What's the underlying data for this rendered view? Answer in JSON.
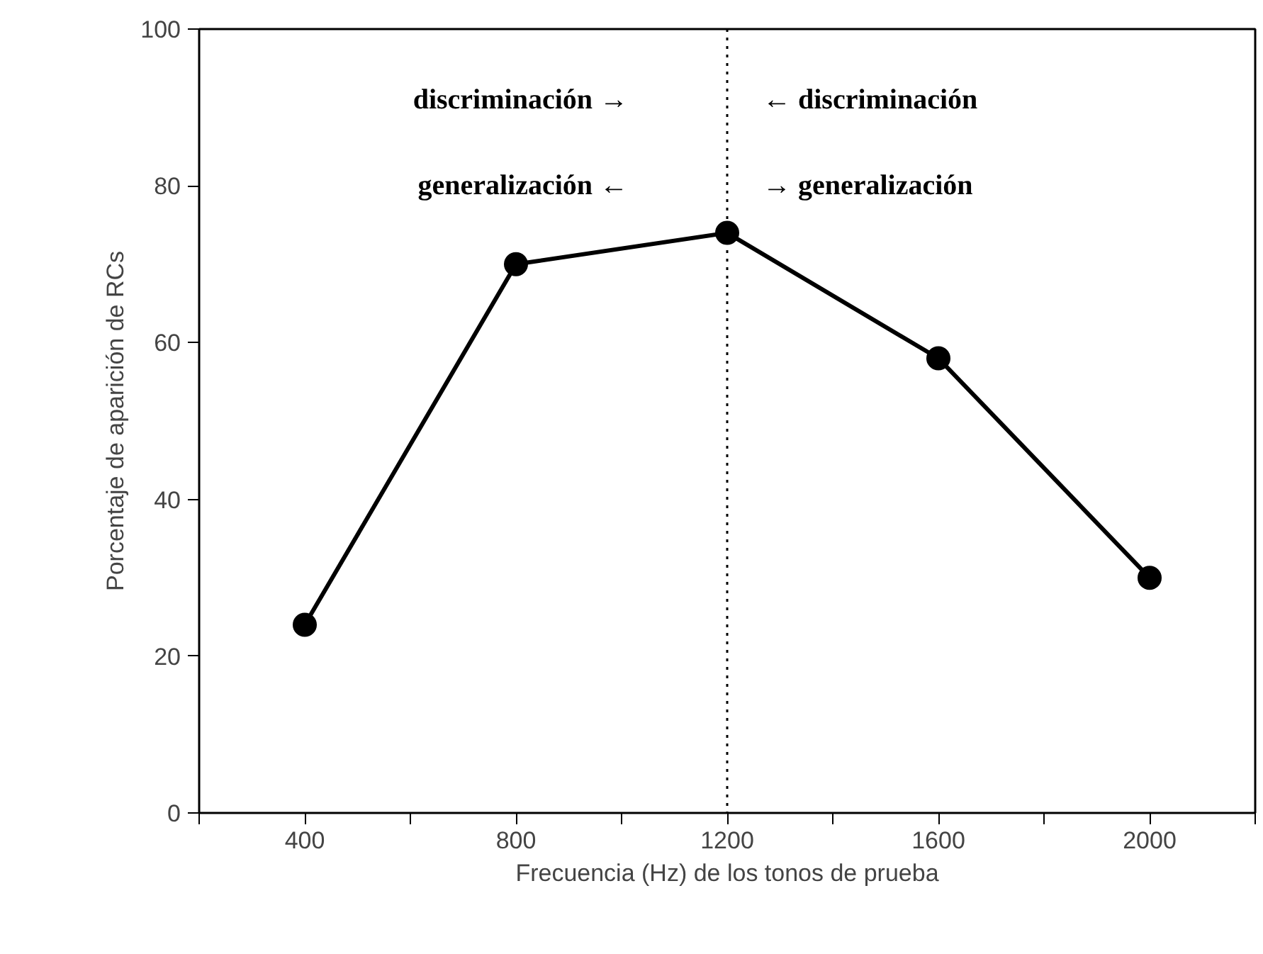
{
  "chart_data": {
    "type": "line",
    "xlabel": "Frecuencia (Hz) de los tonos de prueba",
    "ylabel": "Porcentaje de aparición de RCs",
    "x": [
      400,
      800,
      1200,
      1600,
      2000
    ],
    "series": [
      {
        "color": "#000000",
        "values": [
          24,
          70,
          74,
          58,
          30
        ]
      }
    ],
    "xlim": [
      200,
      2200
    ],
    "xticks": [
      {
        "value": 200,
        "label": null
      },
      400,
      {
        "value": 600,
        "label": null
      },
      800,
      {
        "value": 1000,
        "label": null
      },
      1200,
      {
        "value": 1400,
        "label": null
      },
      1600,
      {
        "value": 1800,
        "label": null
      },
      2000,
      {
        "value": 2200,
        "label": null
      }
    ],
    "ylim": [
      0,
      100
    ],
    "yticks": [
      0,
      20,
      40,
      60,
      80,
      100
    ],
    "ref_lines": [
      {
        "axis": "x",
        "value": 1200,
        "label": null,
        "color": "#000000",
        "line_style": "dotted"
      }
    ],
    "annotations": [
      "discriminación  →",
      "←  discriminación",
      "generalización  ←",
      "→  generalización"
    ],
    "marker": "circle",
    "line_style": "solid",
    "grid": false
  }
}
